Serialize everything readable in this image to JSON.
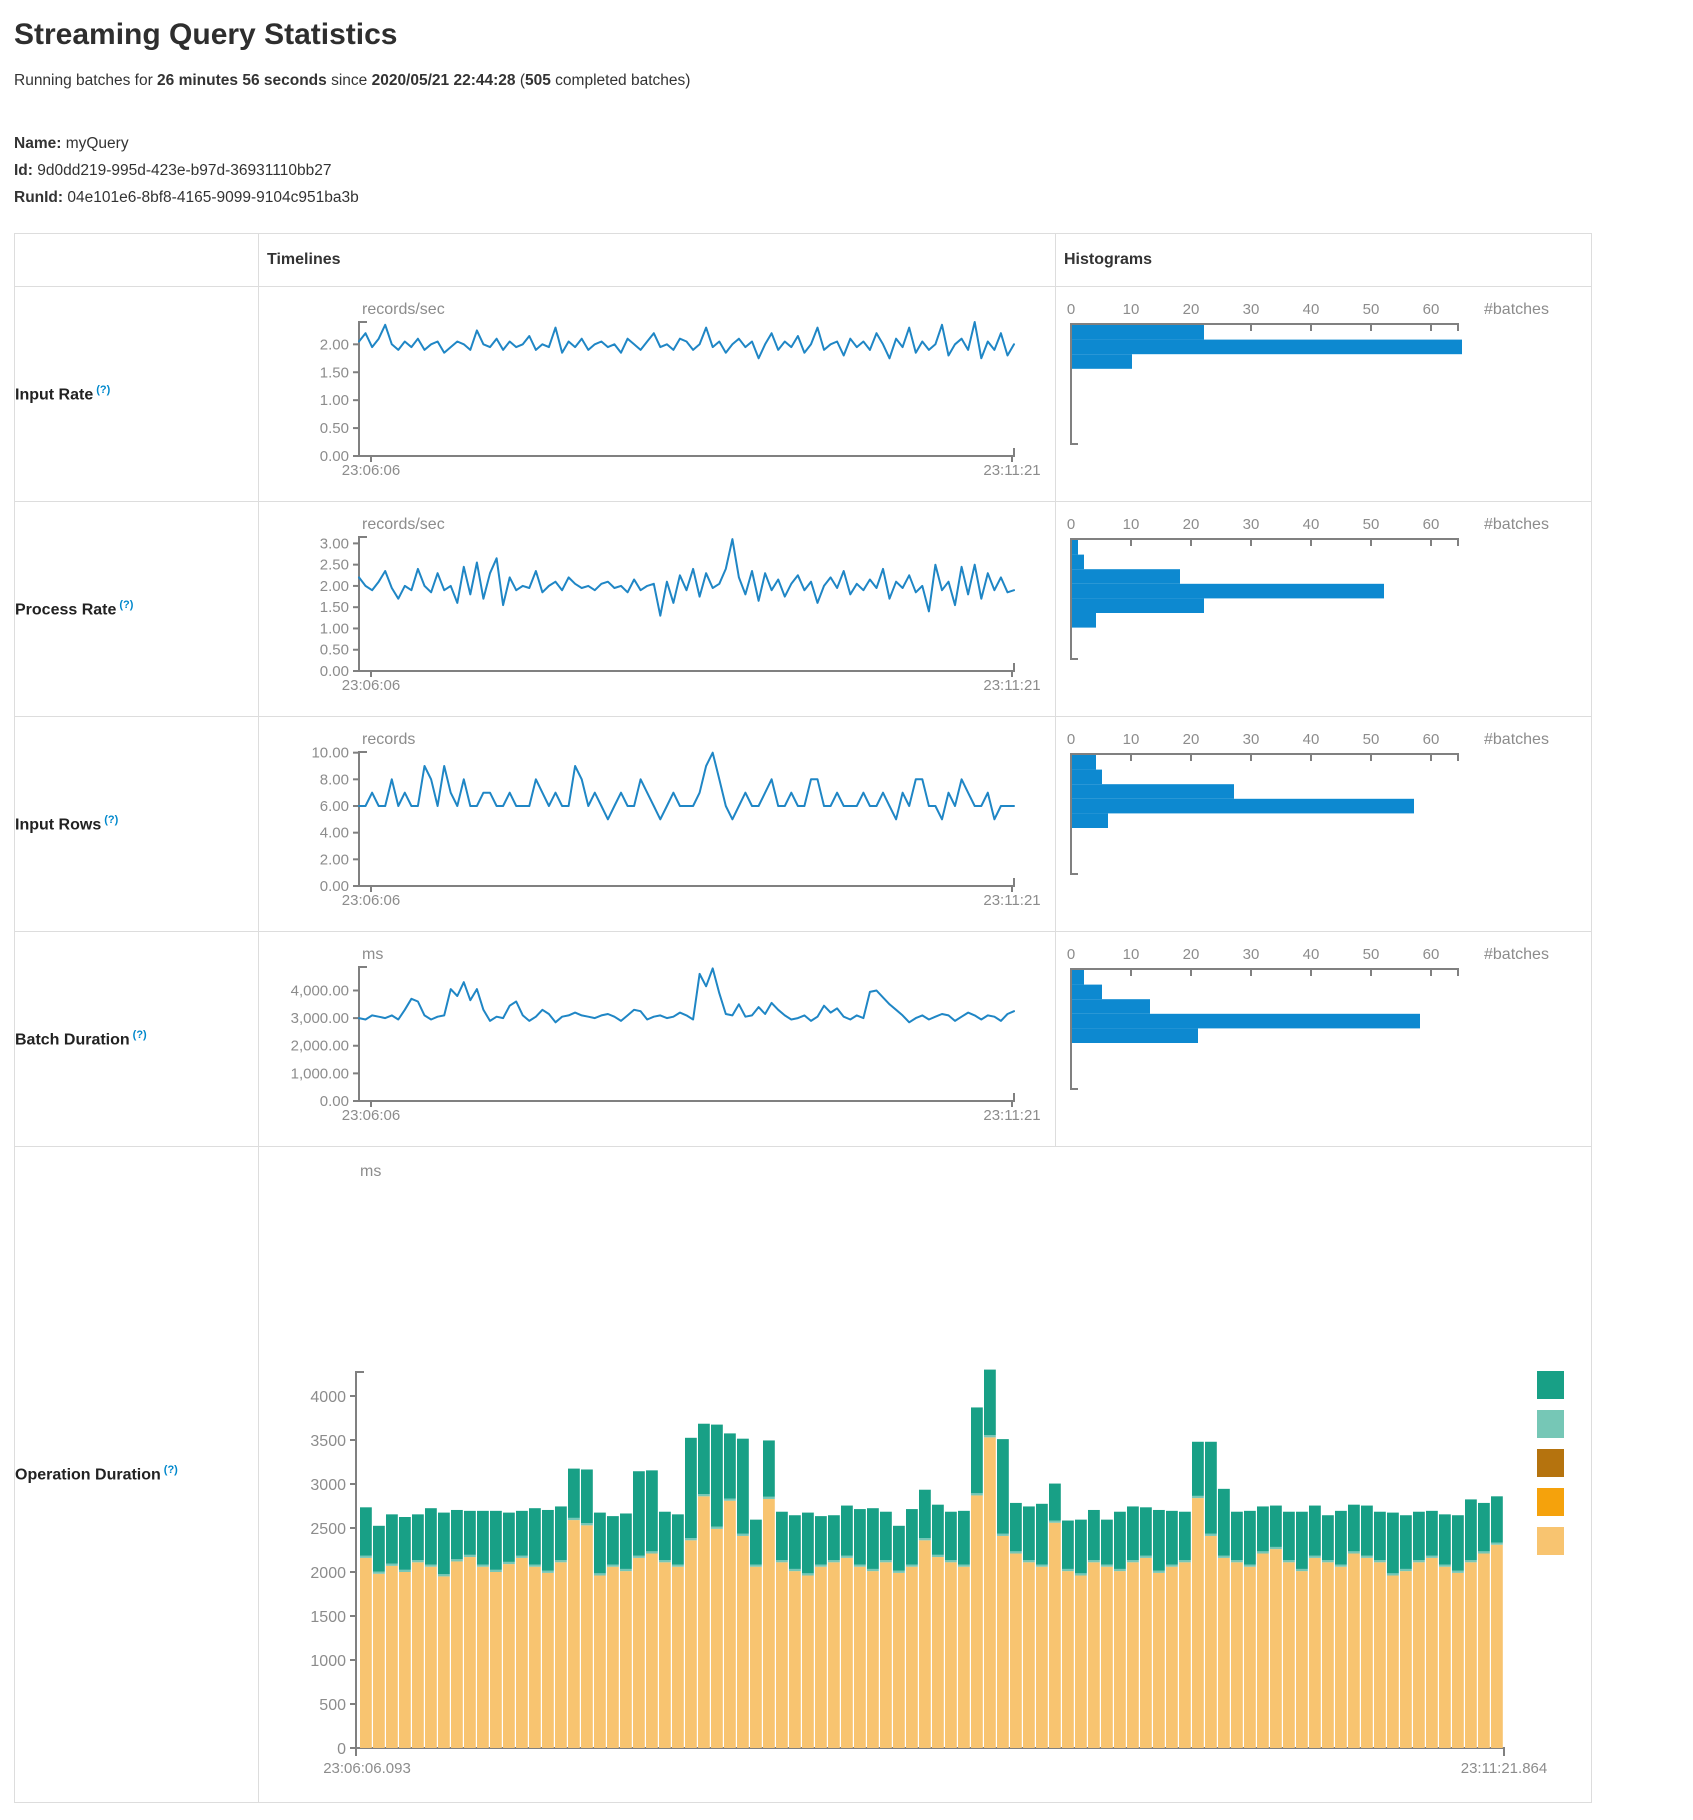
{
  "header": {
    "title": "Streaming Query Statistics",
    "running_prefix": "Running batches for ",
    "duration": "26 minutes 56 seconds",
    "since_text": " since ",
    "start_time": "2020/05/21 22:44:28",
    "paren_open": " (",
    "completed_batches": "505",
    "batches_suffix": " completed batches)",
    "name_label": "Name:",
    "name_value": " myQuery",
    "id_label": "Id:",
    "id_value": " 9d0dd219-995d-423e-b97d-36931110bb27",
    "runid_label": "RunId:",
    "runid_value": " 04e101e6-8bf8-4165-9099-9104c951ba3b"
  },
  "table": {
    "col_timelines": "Timelines",
    "col_histograms": "Histograms"
  },
  "colors": {
    "line_blue": "#1f86c5",
    "hist_blue": "#0d89d0",
    "axis_gray": "#808080",
    "text_gray": "#8c8c8c",
    "help_blue": "#0088cc"
  },
  "chart_data": {
    "metrics": [
      {
        "key": "input_rate",
        "label": "Input Rate",
        "help": "(?)",
        "timeline": {
          "type": "line",
          "unit": "records/sec",
          "x_start": "23:06:06",
          "x_end": "23:11:21",
          "ymax": 2.4,
          "yticks": [
            {
              "v": 2,
              "label": "2.00"
            },
            {
              "v": 1.5,
              "label": "1.50"
            },
            {
              "v": 1,
              "label": "1.00"
            },
            {
              "v": 0.5,
              "label": "0.50"
            },
            {
              "v": 0,
              "label": "0.00"
            }
          ],
          "values": [
            2.05,
            2.2,
            1.95,
            2.1,
            2.35,
            2.0,
            1.9,
            2.05,
            1.95,
            2.1,
            1.9,
            2.0,
            2.05,
            1.85,
            1.95,
            2.05,
            2.0,
            1.9,
            2.25,
            2.0,
            1.95,
            2.1,
            1.9,
            2.05,
            1.95,
            2.0,
            2.15,
            1.9,
            2.0,
            1.95,
            2.3,
            1.85,
            2.05,
            1.95,
            2.1,
            1.9,
            2.0,
            2.05,
            1.95,
            2.0,
            1.85,
            2.1,
            2.0,
            1.9,
            2.05,
            2.2,
            1.95,
            2.0,
            1.9,
            2.1,
            2.05,
            1.9,
            2.0,
            2.3,
            1.95,
            2.05,
            1.85,
            2.0,
            2.1,
            1.95,
            2.05,
            1.75,
            2.0,
            2.2,
            1.9,
            2.05,
            1.95,
            2.15,
            1.85,
            2.0,
            2.3,
            1.9,
            2.0,
            2.05,
            1.8,
            2.1,
            1.95,
            2.05,
            1.9,
            2.2,
            2.0,
            1.75,
            2.1,
            1.95,
            2.3,
            1.85,
            2.05,
            1.9,
            2.0,
            2.35,
            1.8,
            2.0,
            2.1,
            1.9,
            2.4,
            1.75,
            2.05,
            1.9,
            2.2,
            1.8,
            2.0
          ]
        },
        "histogram": {
          "type": "bar",
          "xlabel": "#batches",
          "xticks": [
            0,
            10,
            20,
            30,
            40,
            50,
            60
          ],
          "xmax": 64.5,
          "values": [
            22,
            65,
            10
          ]
        }
      },
      {
        "key": "process_rate",
        "label": "Process Rate",
        "help": "(?)",
        "timeline": {
          "type": "line",
          "unit": "records/sec",
          "x_start": "23:06:06",
          "x_end": "23:11:21",
          "ymax": 3.15,
          "yticks": [
            {
              "v": 3,
              "label": "3.00"
            },
            {
              "v": 2.5,
              "label": "2.50"
            },
            {
              "v": 2,
              "label": "2.00"
            },
            {
              "v": 1.5,
              "label": "1.50"
            },
            {
              "v": 1,
              "label": "1.00"
            },
            {
              "v": 0.5,
              "label": "0.50"
            },
            {
              "v": 0,
              "label": "0.00"
            }
          ],
          "values": [
            2.2,
            2.0,
            1.9,
            2.1,
            2.35,
            1.95,
            1.7,
            2.0,
            1.9,
            2.4,
            2.0,
            1.85,
            2.3,
            1.9,
            2.0,
            1.6,
            2.45,
            1.8,
            2.55,
            1.7,
            2.3,
            2.65,
            1.55,
            2.2,
            1.9,
            2.0,
            1.95,
            2.35,
            1.85,
            2.0,
            2.1,
            1.9,
            2.2,
            2.05,
            1.95,
            2.0,
            1.9,
            2.05,
            2.1,
            1.95,
            2.0,
            1.85,
            2.15,
            1.9,
            2.0,
            2.05,
            1.3,
            2.1,
            1.6,
            2.25,
            1.9,
            2.4,
            1.75,
            2.3,
            1.95,
            2.05,
            2.4,
            3.1,
            2.2,
            1.8,
            2.35,
            1.65,
            2.3,
            1.9,
            2.15,
            1.75,
            2.05,
            2.25,
            1.9,
            2.1,
            1.6,
            2.0,
            2.2,
            1.95,
            2.35,
            1.8,
            2.05,
            1.9,
            2.15,
            1.95,
            2.4,
            1.7,
            2.1,
            1.95,
            2.25,
            1.85,
            2.0,
            1.4,
            2.5,
            1.9,
            2.1,
            1.55,
            2.45,
            1.8,
            2.5,
            1.7,
            2.3,
            1.9,
            2.2,
            1.85,
            1.9
          ]
        },
        "histogram": {
          "type": "bar",
          "xlabel": "#batches",
          "xticks": [
            0,
            10,
            20,
            30,
            40,
            50,
            60
          ],
          "xmax": 64.5,
          "values": [
            1,
            2,
            18,
            52,
            22,
            4
          ]
        }
      },
      {
        "key": "input_rows",
        "label": "Input Rows",
        "help": "(?)",
        "timeline": {
          "type": "line",
          "unit": "records",
          "x_start": "23:06:06",
          "x_end": "23:11:21",
          "ymax": 10.05,
          "yticks": [
            {
              "v": 10,
              "label": "10.00"
            },
            {
              "v": 8,
              "label": "8.00"
            },
            {
              "v": 6,
              "label": "6.00"
            },
            {
              "v": 4,
              "label": "4.00"
            },
            {
              "v": 2,
              "label": "2.00"
            },
            {
              "v": 0,
              "label": "0.00"
            }
          ],
          "values": [
            6,
            6,
            7,
            6,
            6,
            8,
            6,
            7,
            6,
            6,
            9,
            8,
            6,
            9,
            7,
            6,
            8,
            6,
            6,
            7,
            7,
            6,
            6,
            7,
            6,
            6,
            6,
            8,
            7,
            6,
            7,
            6,
            6,
            9,
            8,
            6,
            7,
            6,
            5,
            6,
            7,
            6,
            6,
            8,
            7,
            6,
            5,
            6,
            7,
            6,
            6,
            6,
            7,
            9,
            10,
            8,
            6,
            5,
            6,
            7,
            6,
            6,
            7,
            8,
            6,
            6,
            7,
            6,
            6,
            8,
            8,
            6,
            6,
            7,
            6,
            6,
            6,
            7,
            6,
            6,
            7,
            6,
            5,
            7,
            6,
            8,
            8,
            6,
            6,
            5,
            7,
            6,
            8,
            7,
            6,
            6,
            7,
            5,
            6,
            6,
            6
          ]
        },
        "histogram": {
          "type": "bar",
          "xlabel": "#batches",
          "xticks": [
            0,
            10,
            20,
            30,
            40,
            50,
            60
          ],
          "xmax": 64.5,
          "values": [
            4,
            5,
            27,
            57,
            6
          ]
        }
      },
      {
        "key": "batch_duration",
        "label": "Batch Duration",
        "help": "(?)",
        "timeline": {
          "type": "line",
          "unit": "ms",
          "x_start": "23:06:06",
          "x_end": "23:11:21",
          "ymax": 4850,
          "yticks": [
            {
              "v": 4000,
              "label": "4,000.00"
            },
            {
              "v": 3000,
              "label": "3,000.00"
            },
            {
              "v": 2000,
              "label": "2,000.00"
            },
            {
              "v": 1000,
              "label": "1,000.00"
            },
            {
              "v": 0,
              "label": "0.00"
            }
          ],
          "values": [
            3000,
            2950,
            3100,
            3050,
            3000,
            3100,
            2950,
            3300,
            3700,
            3600,
            3100,
            2950,
            3050,
            3100,
            4050,
            3800,
            4300,
            3650,
            4050,
            3300,
            2900,
            3050,
            3000,
            3450,
            3600,
            3100,
            2900,
            3050,
            3300,
            3150,
            2850,
            3050,
            3100,
            3200,
            3100,
            3050,
            3000,
            3100,
            3150,
            3050,
            2900,
            3100,
            3300,
            3250,
            2950,
            3050,
            3100,
            3000,
            3050,
            3200,
            3100,
            2950,
            4600,
            4150,
            4800,
            3900,
            3150,
            3100,
            3500,
            3050,
            3100,
            3400,
            3150,
            3550,
            3300,
            3100,
            2950,
            3000,
            3100,
            2900,
            3050,
            3450,
            3200,
            3350,
            3050,
            2950,
            3100,
            3000,
            3950,
            4000,
            3750,
            3500,
            3300,
            3100,
            2850,
            3000,
            3100,
            2950,
            3050,
            3150,
            3100,
            2900,
            3050,
            3200,
            3100,
            2950,
            3100,
            3050,
            2900,
            3150,
            3250
          ]
        },
        "histogram": {
          "type": "bar",
          "xlabel": "#batches",
          "xticks": [
            0,
            10,
            20,
            30,
            40,
            50,
            60
          ],
          "xmax": 64.5,
          "values": [
            2,
            5,
            13,
            58,
            21
          ]
        }
      }
    ],
    "operation_duration": {
      "type": "stacked-bar",
      "label": "Operation Duration",
      "help": "(?)",
      "unit": "ms",
      "x_start": "23:06:06.093",
      "x_end": "23:11:21.864",
      "ymax": 4300,
      "yticks": [
        {
          "v": 4000,
          "label": "4000"
        },
        {
          "v": 3500,
          "label": "3500"
        },
        {
          "v": 3000,
          "label": "3000"
        },
        {
          "v": 2500,
          "label": "2500"
        },
        {
          "v": 2000,
          "label": "2000"
        },
        {
          "v": 1500,
          "label": "1500"
        },
        {
          "v": 1000,
          "label": "1000"
        },
        {
          "v": 500,
          "label": "500"
        },
        {
          "v": 0,
          "label": "0"
        }
      ],
      "legend_colors": [
        "#18a086",
        "#76c7b6",
        "#b5730e",
        "#f5a20c",
        "#f8c470"
      ],
      "series": [
        {
          "name": "bottom",
          "color": "#f8c470",
          "values": [
            2160,
            1980,
            2070,
            2000,
            2110,
            2060,
            1950,
            2120,
            2170,
            2060,
            2000,
            2090,
            2160,
            2060,
            1990,
            2110,
            2590,
            2530,
            1960,
            2060,
            2010,
            2160,
            2210,
            2110,
            2060,
            2360,
            2860,
            2490,
            2810,
            2410,
            2060,
            2830,
            2110,
            2010,
            1960,
            2060,
            2110,
            2160,
            2060,
            2010,
            2110,
            1990,
            2060,
            2360,
            2170,
            2110,
            2060,
            2870,
            3530,
            2410,
            2210,
            2110,
            2060,
            2560,
            2010,
            1960,
            2110,
            2060,
            2010,
            2110,
            2160,
            1990,
            2060,
            2110,
            2840,
            2410,
            2160,
            2110,
            2060,
            2210,
            2260,
            2110,
            2010,
            2160,
            2110,
            2060,
            2210,
            2160,
            2110,
            1960,
            2010,
            2110,
            2160,
            2060,
            1990,
            2110,
            2210,
            2310
          ]
        },
        {
          "name": "middle",
          "color": "#76c7b6",
          "values": [
            25,
            25,
            25,
            25,
            25,
            25,
            25,
            25,
            25,
            25,
            25,
            25,
            25,
            25,
            25,
            25,
            25,
            25,
            25,
            25,
            25,
            25,
            25,
            25,
            25,
            25,
            25,
            25,
            25,
            25,
            25,
            25,
            25,
            25,
            25,
            25,
            25,
            25,
            25,
            25,
            25,
            25,
            25,
            25,
            25,
            25,
            25,
            25,
            25,
            25,
            25,
            25,
            25,
            25,
            25,
            25,
            25,
            25,
            25,
            25,
            25,
            25,
            25,
            25,
            25,
            25,
            25,
            25,
            25,
            25,
            25,
            25,
            25,
            25,
            25,
            25,
            25,
            25,
            25,
            25,
            25,
            25,
            25,
            25,
            25,
            25,
            25,
            25
          ]
        },
        {
          "name": "top",
          "color": "#18a086",
          "values": [
            550,
            520,
            560,
            600,
            520,
            640,
            700,
            560,
            500,
            610,
            670,
            560,
            510,
            640,
            690,
            610,
            560,
            610,
            690,
            550,
            630,
            960,
            920,
            550,
            570,
            1140,
            800,
            1160,
            740,
            1080,
            510,
            640,
            550,
            610,
            690,
            550,
            510,
            570,
            630,
            690,
            550,
            510,
            630,
            550,
            570,
            550,
            610,
            975,
            745,
            1075,
            550,
            610,
            690,
            420,
            550,
            610,
            570,
            510,
            650,
            610,
            550,
            690,
            610,
            550,
            615,
            1045,
            760,
            550,
            610,
            510,
            470,
            550,
            650,
            570,
            510,
            610,
            530,
            570,
            550,
            690,
            610,
            550,
            510,
            570,
            630,
            690,
            550,
            525
          ]
        }
      ]
    }
  }
}
